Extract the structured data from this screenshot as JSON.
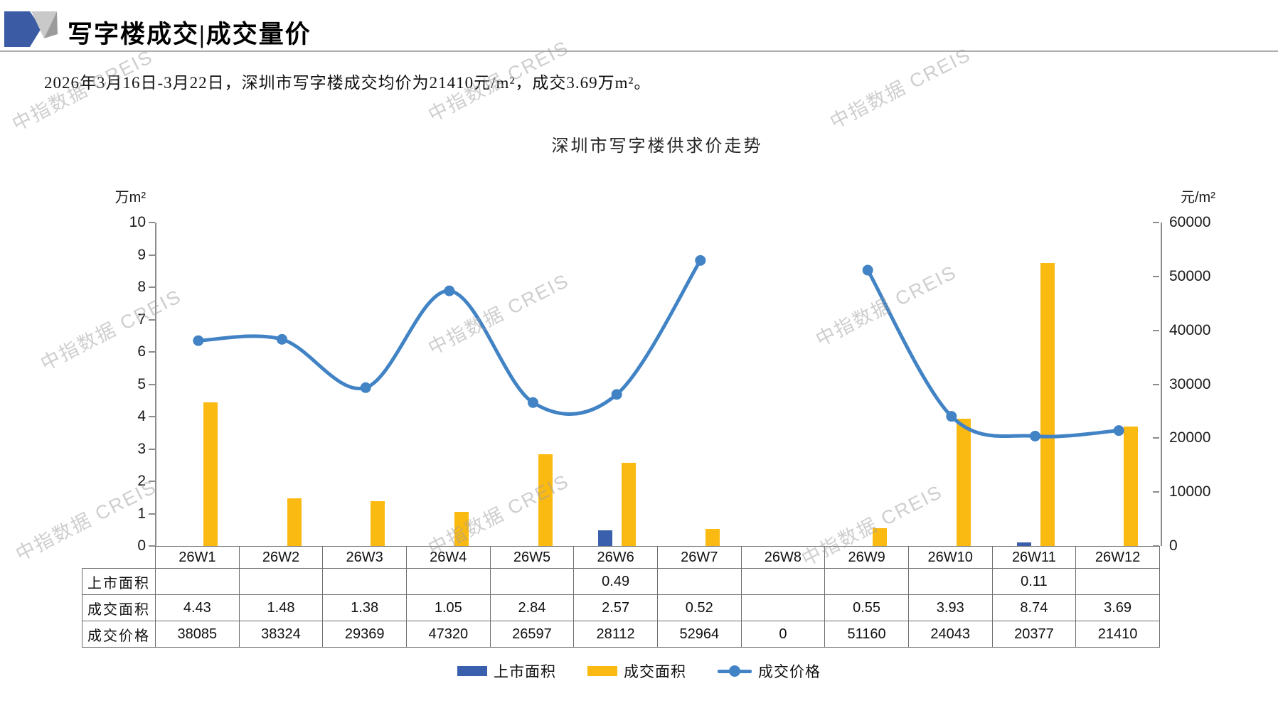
{
  "page": {
    "title": "写字楼成交|成交量价",
    "subtitle": "2026年3月16日-3月22日，深圳市写字楼成交均价为21410元/m²，成交3.69万m²。",
    "watermark_text": "中指数据 CREIS"
  },
  "colors": {
    "listing_bar": "#3A5FAC",
    "volume_bar": "#FBBA12",
    "price_line": "#4183C4",
    "axis": "#8C8C8C",
    "logo_blue": "#3B5BA5",
    "logo_gray_light": "#C9C9C9",
    "logo_gray_dark": "#9B9B9B"
  },
  "chart_data": {
    "type": "combo",
    "title": "深圳市写字楼供求价走势",
    "categories": [
      "26W1",
      "26W2",
      "26W3",
      "26W4",
      "26W5",
      "26W6",
      "26W7",
      "26W8",
      "26W9",
      "26W10",
      "26W11",
      "26W12"
    ],
    "series": [
      {
        "name": "上市面积",
        "type": "bar",
        "axis": "left",
        "color": "#3A5FAC",
        "values": [
          null,
          null,
          null,
          null,
          null,
          0.49,
          null,
          null,
          null,
          null,
          0.11,
          null
        ]
      },
      {
        "name": "成交面积",
        "type": "bar",
        "axis": "left",
        "color": "#FBBA12",
        "values": [
          4.43,
          1.48,
          1.38,
          1.05,
          2.84,
          2.57,
          0.52,
          null,
          0.55,
          3.93,
          8.74,
          3.69
        ]
      },
      {
        "name": "成交价格",
        "type": "line",
        "axis": "right",
        "color": "#4183C4",
        "values": [
          38085,
          38324,
          29369,
          47320,
          26597,
          28112,
          52964,
          null,
          51160,
          24043,
          20377,
          21410
        ]
      }
    ],
    "left_axis": {
      "unit": "万m²",
      "min": 0,
      "max": 10,
      "step": 1
    },
    "right_axis": {
      "unit": "元/m²",
      "min": 0,
      "max": 60000,
      "step": 10000
    },
    "legend": [
      "上市面积",
      "成交面积",
      "成交价格"
    ],
    "legend_position": "bottom",
    "grid": false
  },
  "table": {
    "rows": [
      {
        "label": "上市面积",
        "values": [
          "",
          "",
          "",
          "",
          "",
          "0.49",
          "",
          "",
          "",
          "",
          "0.11",
          ""
        ]
      },
      {
        "label": "成交面积",
        "values": [
          "4.43",
          "1.48",
          "1.38",
          "1.05",
          "2.84",
          "2.57",
          "0.52",
          "",
          "0.55",
          "3.93",
          "8.74",
          "3.69"
        ]
      },
      {
        "label": "成交价格",
        "values": [
          "38085",
          "38324",
          "29369",
          "47320",
          "26597",
          "28112",
          "52964",
          "0",
          "51160",
          "24043",
          "20377",
          "21410"
        ]
      }
    ]
  }
}
